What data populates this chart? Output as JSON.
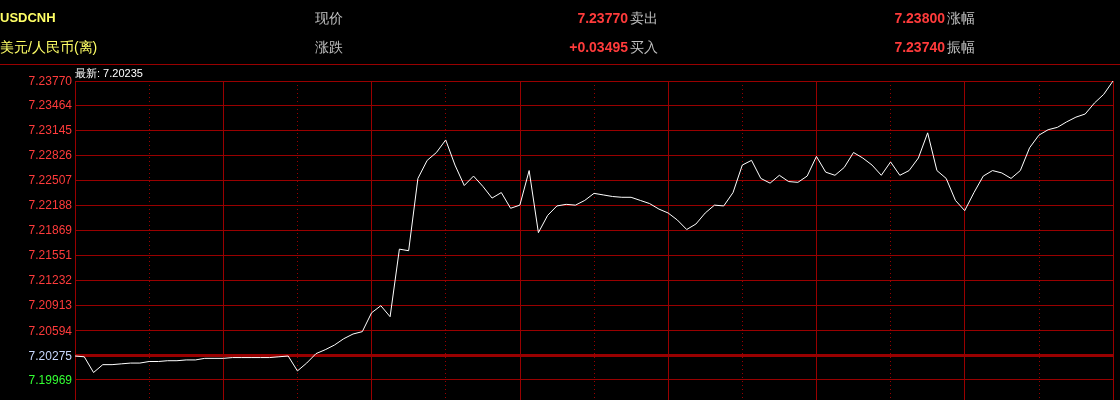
{
  "chart_data": {
    "type": "line",
    "title": "USDCNH",
    "subtitle": "美元/人民币(离)",
    "annotations": [
      "现价",
      "7.23770",
      "卖出",
      "7.23800",
      "涨幅",
      "涨跌",
      "+0.03495",
      "买入",
      "7.23740",
      "振幅",
      "最新: 7.20235"
    ],
    "categories": [
      null,
      null,
      null,
      null,
      null,
      null,
      null,
      null,
      null,
      null,
      null,
      null,
      null,
      null,
      null,
      null,
      null,
      null,
      null,
      null,
      null,
      null,
      null,
      null,
      null,
      null,
      null,
      null,
      null,
      null,
      null,
      null,
      null,
      null,
      null,
      null,
      null,
      null,
      null,
      null,
      null,
      null,
      null,
      null,
      null,
      null,
      null,
      null,
      null,
      null,
      null,
      null,
      null,
      null,
      null,
      null,
      null,
      null,
      null,
      null,
      null,
      null,
      null,
      null,
      null,
      null,
      null,
      null,
      null,
      null,
      null,
      null,
      null,
      null,
      null,
      null,
      null,
      null,
      null,
      null,
      null,
      null,
      null,
      null,
      null,
      null,
      null,
      null,
      null,
      null,
      null,
      null,
      null,
      null,
      null,
      null,
      null,
      null,
      null,
      null,
      null,
      null,
      null,
      null,
      null,
      null,
      null,
      null,
      null,
      null,
      null,
      null,
      null
    ],
    "series": [
      {
        "color": "#ffffff",
        "values": [
          7.2027,
          7.2026,
          7.2006,
          7.2016,
          7.2016,
          7.2017,
          7.2018,
          7.2018,
          7.202,
          7.202,
          7.2021,
          7.2021,
          7.2022,
          7.2022,
          7.2024,
          7.2024,
          7.2024,
          7.2025,
          7.2025,
          7.2025,
          7.2025,
          7.2025,
          7.2026,
          7.2027,
          7.2008,
          7.2018,
          7.203,
          7.2035,
          7.2041,
          7.2049,
          7.2055,
          7.2058,
          7.2082,
          7.2091,
          7.2077,
          7.2163,
          7.2161,
          7.2253,
          7.2276,
          7.2286,
          7.2302,
          7.227,
          7.2244,
          7.2256,
          7.2243,
          7.2228,
          7.2235,
          7.2215,
          7.2219,
          7.2263,
          7.2184,
          7.2206,
          7.2218,
          7.222,
          7.2219,
          7.2225,
          7.2234,
          7.2232,
          7.223,
          7.2229,
          7.2229,
          7.2225,
          7.2221,
          7.2214,
          7.2209,
          7.22,
          7.2188,
          7.2195,
          7.2209,
          7.2219,
          7.2218,
          7.2235,
          7.227,
          7.2276,
          7.2253,
          7.2247,
          7.2257,
          7.2249,
          7.2248,
          7.2256,
          7.2281,
          7.2261,
          7.2257,
          7.2267,
          7.2286,
          7.2279,
          7.227,
          7.2257,
          7.2274,
          7.2257,
          7.2263,
          7.2279,
          7.2311,
          7.2263,
          7.2253,
          7.2225,
          7.2212,
          7.2235,
          7.2256,
          7.2263,
          7.226,
          7.2253,
          7.2263,
          7.2292,
          7.2308,
          7.2315,
          7.2318,
          7.2325,
          7.2331,
          7.2335,
          7.2349,
          7.236,
          7.2377
        ]
      }
    ],
    "ylim": [
      7.1971,
      7.2377
    ],
    "yticks": [
      {
        "value": 7.2377,
        "label": "7.23770"
      },
      7.23464,
      7.23145,
      7.22826,
      7.22507,
      7.22188,
      7.21869,
      7.21551,
      7.21232,
      7.20913,
      7.20594,
      7.20275,
      7.19969
    ],
    "ref_lines": [
      {
        "axis": "y",
        "value": 7.20275,
        "color": "#990000"
      }
    ],
    "grid": true,
    "marker": "none",
    "line_style": "solid",
    "tick_labels": "y"
  }
}
